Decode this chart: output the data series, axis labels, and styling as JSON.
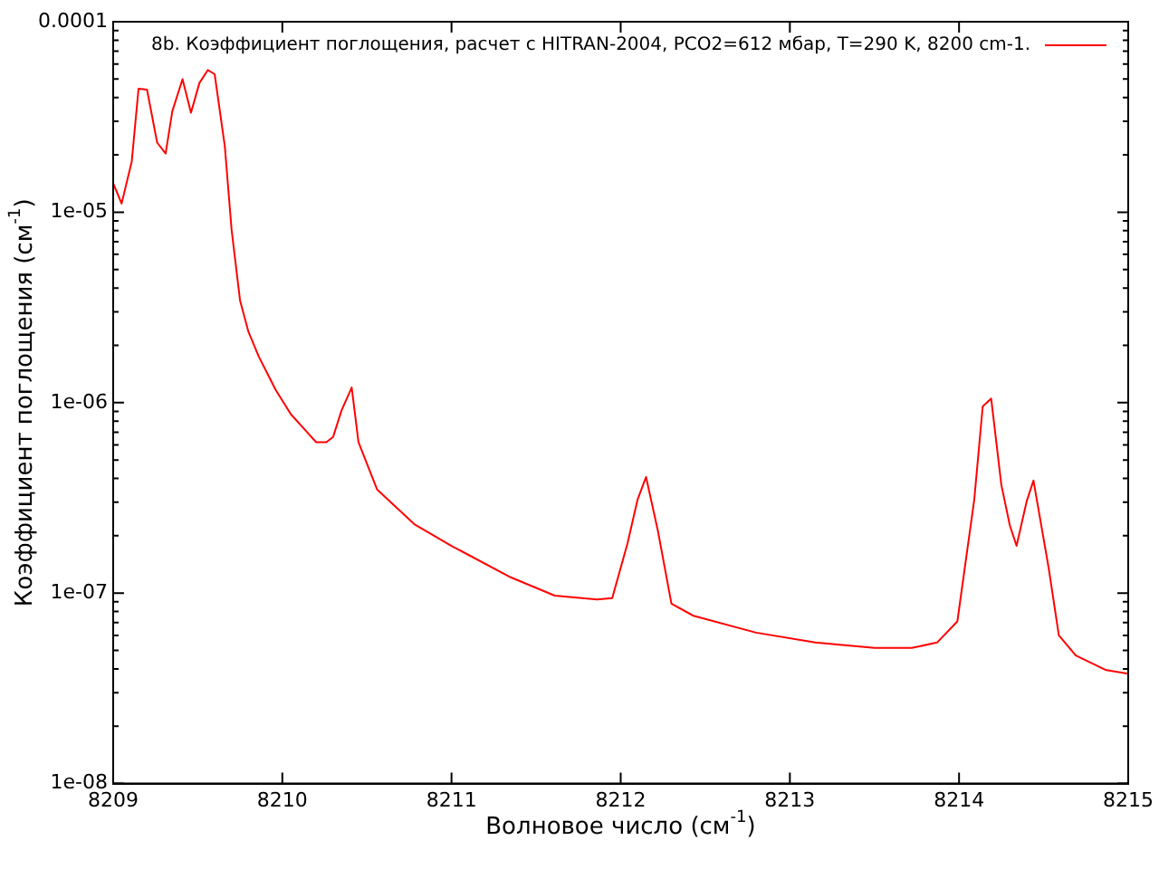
{
  "chart_data": {
    "type": "line",
    "xlabel": "Волновое число (см$^{-1}$)",
    "ylabel": "Коэффициент поглощения (см$^{-1}$)",
    "series": [
      {
        "name": "8b. Коэффициент поглощения, расчет с HITRAN-2004, PCO2=612 мбар, T=290 K, 8200 cm-1.",
        "color": "#ff0000",
        "x": [
          8209,
          8209.05,
          8209.11,
          8209.15,
          8209.2,
          8209.26,
          8209.31,
          8209.35,
          8209.41,
          8209.46,
          8209.51,
          8209.56,
          8209.6,
          8209.66,
          8209.7,
          8209.75,
          8209.8,
          8209.86,
          8209.96,
          8210.05,
          8210.14,
          8210.2,
          8210.26,
          8210.3,
          8210.35,
          8210.41,
          8210.45,
          8210.56,
          8210.78,
          8211,
          8211.35,
          8211.61,
          8211.86,
          8211.95,
          8212.04,
          8212.1,
          8212.15,
          8212.22,
          8212.3,
          8212.43,
          8212.8,
          8213.15,
          8213.5,
          8213.72,
          8213.87,
          8213.99,
          8214.09,
          8214.14,
          8214.19,
          8214.25,
          8214.3,
          8214.34,
          8214.4,
          8214.44,
          8214.53,
          8214.59,
          8214.69,
          8214.87,
          8215
        ],
        "values": [
          1.42e-05,
          1.11e-05,
          1.85e-05,
          4.45e-05,
          4.4e-05,
          2.32e-05,
          2.03e-05,
          3.4e-05,
          4.99e-05,
          3.33e-05,
          4.77e-05,
          5.58e-05,
          5.3e-05,
          2.22e-05,
          8.1e-06,
          3.44e-06,
          2.35e-06,
          1.75e-06,
          1.17e-06,
          8.7e-07,
          7.1e-07,
          6.2e-07,
          6.2e-07,
          6.6e-07,
          9.1e-07,
          1.2e-06,
          6.2e-07,
          3.5e-07,
          2.3e-07,
          1.77e-07,
          1.21e-07,
          9.7e-08,
          9.25e-08,
          9.4e-08,
          1.82e-07,
          3.1e-07,
          4.07e-07,
          2.12e-07,
          8.8e-08,
          7.6e-08,
          6.2e-08,
          5.5e-08,
          5.15e-08,
          5.15e-08,
          5.5e-08,
          7.1e-08,
          3.1e-07,
          9.55e-07,
          1.05e-06,
          3.7e-07,
          2.27e-07,
          1.77e-07,
          3.04e-07,
          3.9e-07,
          1.35e-07,
          6e-08,
          4.7e-08,
          3.94e-08,
          3.77e-08
        ]
      }
    ],
    "xlim": [
      8209,
      8215
    ],
    "xticks": [
      8209,
      8210,
      8211,
      8212,
      8213,
      8214,
      8215
    ],
    "ylim": [
      1e-08,
      0.0001
    ],
    "yticks": [
      {
        "value": 1e-08,
        "label": "1e-08"
      },
      {
        "value": 2e-08,
        "label": null
      },
      {
        "value": 3e-08,
        "label": null
      },
      {
        "value": 4e-08,
        "label": null
      },
      {
        "value": 5e-08,
        "label": null
      },
      {
        "value": 6e-08,
        "label": null
      },
      {
        "value": 7e-08,
        "label": null
      },
      {
        "value": 8e-08,
        "label": null
      },
      {
        "value": 9e-08,
        "label": null
      },
      {
        "value": 1e-07,
        "label": "1e-07"
      },
      {
        "value": 2e-07,
        "label": null
      },
      {
        "value": 3e-07,
        "label": null
      },
      {
        "value": 4e-07,
        "label": null
      },
      {
        "value": 5e-07,
        "label": null
      },
      {
        "value": 6e-07,
        "label": null
      },
      {
        "value": 7e-07,
        "label": null
      },
      {
        "value": 8e-07,
        "label": null
      },
      {
        "value": 9e-07,
        "label": null
      },
      {
        "value": 1e-06,
        "label": "1e-06"
      },
      {
        "value": 2e-06,
        "label": null
      },
      {
        "value": 3e-06,
        "label": null
      },
      {
        "value": 4e-06,
        "label": null
      },
      {
        "value": 5e-06,
        "label": null
      },
      {
        "value": 6e-06,
        "label": null
      },
      {
        "value": 7e-06,
        "label": null
      },
      {
        "value": 8e-06,
        "label": null
      },
      {
        "value": 9e-06,
        "label": null
      },
      {
        "value": 1e-05,
        "label": "1e-05"
      },
      {
        "value": 2e-05,
        "label": null
      },
      {
        "value": 3e-05,
        "label": null
      },
      {
        "value": 4e-05,
        "label": null
      },
      {
        "value": 5e-05,
        "label": null
      },
      {
        "value": 6e-05,
        "label": null
      },
      {
        "value": 7e-05,
        "label": null
      },
      {
        "value": 8e-05,
        "label": null
      },
      {
        "value": 9e-05,
        "label": null
      },
      {
        "value": 0.0001,
        "label": "0.0001"
      }
    ],
    "log": "y",
    "legend": "top right",
    "marker": "none"
  }
}
